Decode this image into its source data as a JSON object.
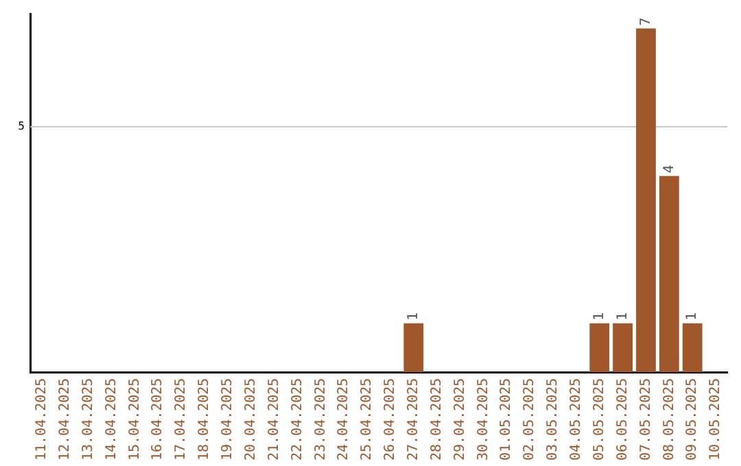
{
  "chart_data": {
    "type": "bar",
    "categories": [
      "11.04.2025",
      "12.04.2025",
      "13.04.2025",
      "14.04.2025",
      "15.04.2025",
      "16.04.2025",
      "17.04.2025",
      "18.04.2025",
      "19.04.2025",
      "20.04.2025",
      "21.04.2025",
      "22.04.2025",
      "23.04.2025",
      "24.04.2025",
      "25.04.2025",
      "26.04.2025",
      "27.04.2025",
      "28.04.2025",
      "29.04.2025",
      "30.04.2025",
      "01.05.2025",
      "02.05.2025",
      "03.05.2025",
      "04.05.2025",
      "05.05.2025",
      "06.05.2025",
      "07.05.2025",
      "08.05.2025",
      "09.05.2025",
      "10.05.2025"
    ],
    "values": [
      null,
      null,
      null,
      null,
      null,
      null,
      null,
      null,
      null,
      null,
      null,
      null,
      null,
      null,
      null,
      null,
      1,
      null,
      null,
      null,
      null,
      null,
      null,
      null,
      1,
      1,
      7,
      4,
      1,
      null
    ],
    "value_labels": [
      null,
      null,
      null,
      null,
      null,
      null,
      null,
      null,
      null,
      null,
      null,
      null,
      null,
      null,
      null,
      null,
      "1",
      null,
      null,
      null,
      null,
      null,
      null,
      null,
      "1",
      "1",
      "7",
      "4",
      "1",
      null
    ],
    "color": "#a0572a",
    "ylim": [
      0,
      7.3
    ],
    "ref_lines": [
      {
        "axis": "y",
        "value": 5,
        "label": "5",
        "color": "#c8c8c8"
      }
    ],
    "legend": false
  }
}
